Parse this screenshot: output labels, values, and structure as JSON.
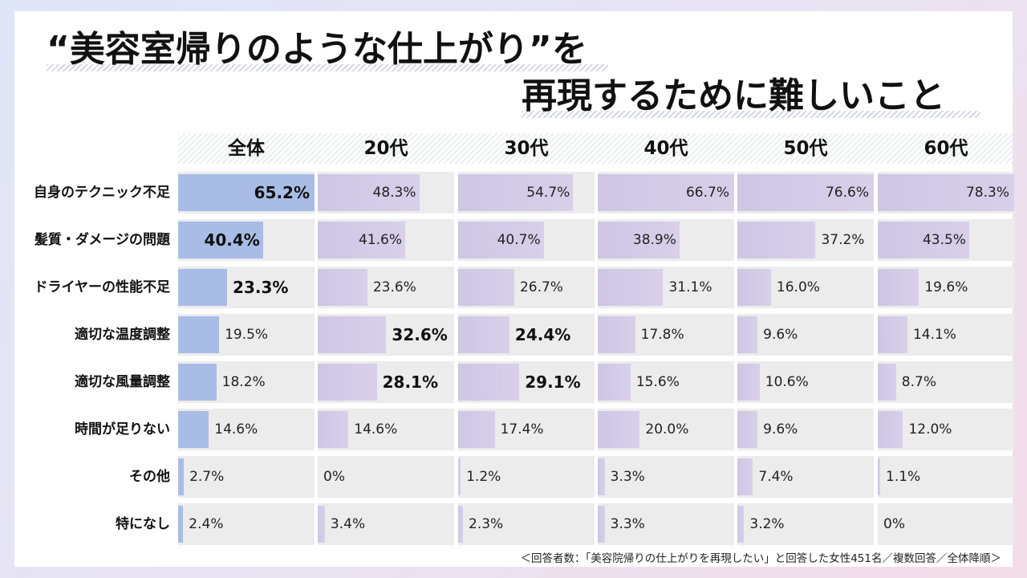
{
  "title": {
    "line1": "“美容室帰りのような仕上がり”を",
    "line2": "再現するために難しいこと"
  },
  "footnote": "＜回答者数：「美容院帰りの仕上がりを再現したい」と回答した女性451名／複数回答／全体降順＞",
  "colors": {
    "total_bar": "#a9bce6",
    "age_bar": "#d3cbe7",
    "cell_bg": "#ececec"
  },
  "chart_data": {
    "type": "bar",
    "orientation": "horizontal",
    "title": "“美容室帰りのような仕上がり”を再現するために難しいこと",
    "unit": "%",
    "xlim": [
      0,
      100
    ],
    "categories": [
      "自身のテクニック不足",
      "髪質・ダメージの問題",
      "ドライヤーの性能不足",
      "適切な温度調整",
      "適切な風量調整",
      "時間が足りない",
      "その他",
      "特になし"
    ],
    "series": [
      {
        "name": "全体",
        "values": [
          65.2,
          40.4,
          23.3,
          19.5,
          18.2,
          14.6,
          2.7,
          2.4
        ],
        "labels": [
          "65.2%",
          "40.4%",
          "23.3%",
          "19.5%",
          "18.2%",
          "14.6%",
          "2.7%",
          "2.4%"
        ],
        "bold": [
          true,
          true,
          true,
          false,
          false,
          false,
          false,
          false
        ]
      },
      {
        "name": "20代",
        "values": [
          48.3,
          41.6,
          23.6,
          32.6,
          28.1,
          14.6,
          0,
          3.4
        ],
        "labels": [
          "48.3%",
          "41.6%",
          "23.6%",
          "32.6%",
          "28.1%",
          "14.6%",
          "0%",
          "3.4%"
        ],
        "bold": [
          false,
          false,
          false,
          true,
          true,
          false,
          false,
          false
        ]
      },
      {
        "name": "30代",
        "values": [
          54.7,
          40.7,
          26.7,
          24.4,
          29.1,
          17.4,
          1.2,
          2.3
        ],
        "labels": [
          "54.7%",
          "40.7%",
          "26.7%",
          "24.4%",
          "29.1%",
          "17.4%",
          "1.2%",
          "2.3%"
        ],
        "bold": [
          false,
          false,
          false,
          true,
          true,
          false,
          false,
          false
        ]
      },
      {
        "name": "40代",
        "values": [
          66.7,
          38.9,
          31.1,
          17.8,
          15.6,
          20.0,
          3.3,
          3.3
        ],
        "labels": [
          "66.7%",
          "38.9%",
          "31.1%",
          "17.8%",
          "15.6%",
          "20.0%",
          "3.3%",
          "3.3%"
        ],
        "bold": [
          false,
          false,
          false,
          false,
          false,
          false,
          false,
          false
        ]
      },
      {
        "name": "50代",
        "values": [
          76.6,
          37.2,
          16.0,
          9.6,
          10.6,
          9.6,
          7.4,
          3.2
        ],
        "labels": [
          "76.6%",
          "37.2%",
          "16.0%",
          "9.6%",
          "10.6%",
          "9.6%",
          "7.4%",
          "3.2%"
        ],
        "bold": [
          false,
          false,
          false,
          false,
          false,
          false,
          false,
          false
        ]
      },
      {
        "name": "60代",
        "values": [
          78.3,
          43.5,
          19.6,
          14.1,
          8.7,
          12.0,
          1.1,
          0
        ],
        "labels": [
          "78.3%",
          "43.5%",
          "19.6%",
          "14.1%",
          "8.7%",
          "12.0%",
          "1.1%",
          "0%"
        ],
        "bold": [
          false,
          false,
          false,
          false,
          false,
          false,
          false,
          false
        ]
      }
    ]
  }
}
